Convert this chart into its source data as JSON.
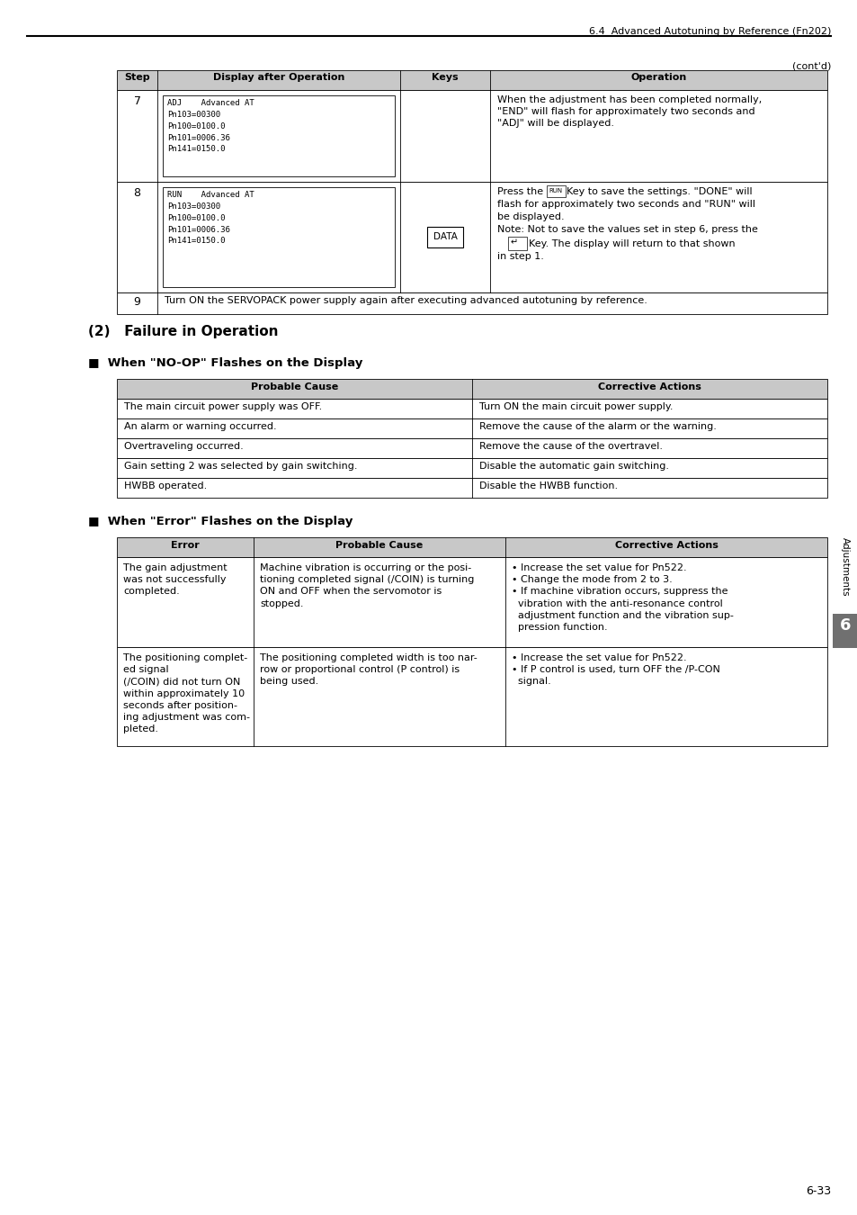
{
  "page_header": "6.4  Advanced Autotuning by Reference (Fn202)",
  "contd": "(cont'd)",
  "bg_color": "#ffffff",
  "header_bg": "#c8c8c8",
  "row7_display": "ADJ    Advanced AT\nPn103=00300\nPn100=0100.0\nPn101=0006.36\nPn141=0150.0",
  "row7_op": "When the adjustment has been completed normally,\n\"END\" will flash for approximately two seconds and\n\"ADJ\" will be displayed.",
  "row8_display": "RUN    Advanced AT\nPn103=00300\nPn100=0100.0\nPn101=0006.36\nPn141=0150.0",
  "row8_key": "DATA",
  "row8_op_line1": "Press the",
  "row8_op_line2": "Key to save the settings. \"DONE\" will",
  "row8_op_line3": "flash for approximately two seconds and \"RUN\" will",
  "row8_op_line4": "be displayed.",
  "row8_op_line5": "Note: Not to save the values set in step 6, press the",
  "row8_op_line7": "Key. The display will return to that shown",
  "row8_op_line8": "in step 1.",
  "row9_text": "Turn ON the SERVOPACK power supply again after executing advanced autotuning by reference.",
  "section_title": "(2)   Failure in Operation",
  "subsection1": "■  When \"NO-OP\" Flashes on the Display",
  "noop_rows": [
    [
      "The main circuit power supply was OFF.",
      "Turn ON the main circuit power supply."
    ],
    [
      "An alarm or warning occurred.",
      "Remove the cause of the alarm or the warning."
    ],
    [
      "Overtraveling occurred.",
      "Remove the cause of the overtravel."
    ],
    [
      "Gain setting 2 was selected by gain switching.",
      "Disable the automatic gain switching."
    ],
    [
      "HWBB operated.",
      "Disable the HWBB function."
    ]
  ],
  "subsection2": "■  When \"Error\" Flashes on the Display",
  "error_row1_error": "The gain adjustment\nwas not successfully\ncompleted.",
  "error_row1_cause": "Machine vibration is occurring or the posi-\ntioning completed signal (/COIN) is turning\nON and OFF when the servomotor is\nstopped.",
  "error_row1_actions": "• Increase the set value for Pn522.\n• Change the mode from 2 to 3.\n• If machine vibration occurs, suppress the\n  vibration with the anti-resonance control\n  adjustment function and the vibration sup-\n  pression function.",
  "error_row2_error": "The positioning complet-\ned signal\n(/COIN) did not turn ON\nwithin approximately 10\nseconds after position-\ning adjustment was com-\npleted.",
  "error_row2_cause": "The positioning completed width is too nar-\nrow or proportional control (P control) is\nbeing used.",
  "error_row2_actions": "• Increase the set value for Pn522.\n• If P control is used, turn OFF the /P-CON\n  signal.",
  "sidebar_text": "Adjustments",
  "sidebar_num": "6",
  "page_num": "6-33"
}
